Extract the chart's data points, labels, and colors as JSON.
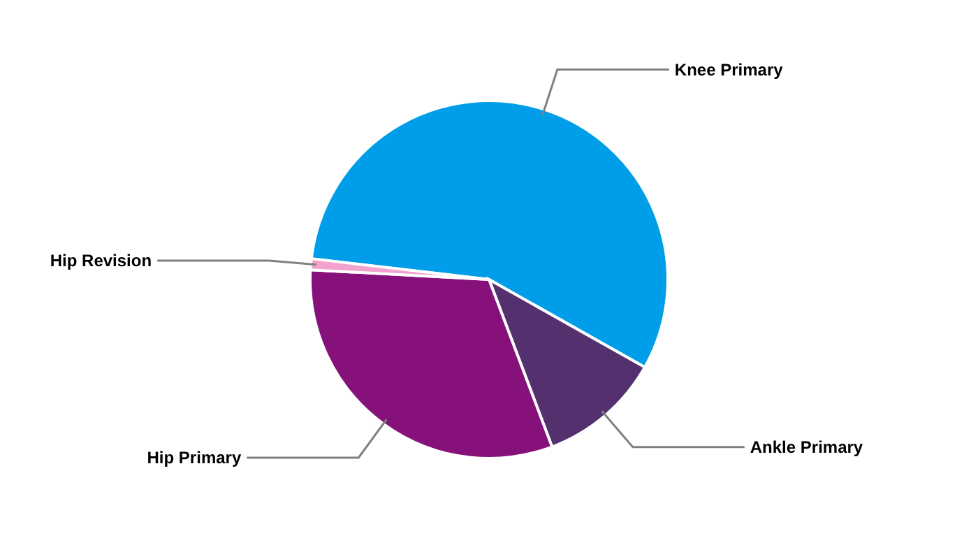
{
  "chart_data": {
    "type": "pie",
    "categories": [
      "Knee Primary",
      "Ankle Primary",
      "Hip Primary",
      "Hip Revision"
    ],
    "values": [
      56.3,
      11.1,
      31.6,
      1.0
    ],
    "colors": [
      "#009ee8",
      "#54306e",
      "#86117a",
      "#f2a2cc"
    ]
  }
}
